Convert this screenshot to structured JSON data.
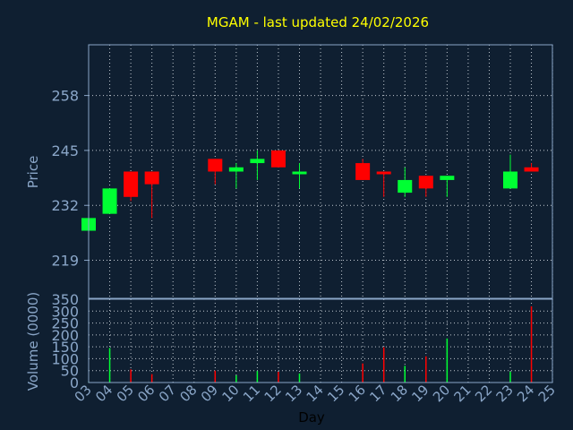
{
  "colors": {
    "background": "#0f1f31",
    "frame": "#8aa6c8",
    "grid": "#c0c8d0",
    "title": "#ffff00",
    "axis_text": "#8aa6c8",
    "xlabel_text": "#000000",
    "up": "#00ff33",
    "down": "#ff0000"
  },
  "chart_data": [
    {
      "type": "candlestick",
      "title": "MGAM - last updated 24/02/2026",
      "ylabel": "Price",
      "xlabel": "Day",
      "grid": true,
      "ylim": [
        210,
        270
      ],
      "yticks": [
        219,
        232,
        245,
        258
      ],
      "x_categories": [
        "03",
        "04",
        "05",
        "06",
        "07",
        "08",
        "09",
        "10",
        "11",
        "12",
        "13",
        "14",
        "15",
        "16",
        "17",
        "18",
        "19",
        "20",
        "21",
        "22",
        "23",
        "24",
        "25"
      ],
      "candles": [
        {
          "x": "03",
          "open": 226,
          "high": 229,
          "low": 226,
          "close": 229,
          "direction": "up"
        },
        {
          "x": "04",
          "open": 230,
          "high": 236,
          "low": 230,
          "close": 236,
          "direction": "up"
        },
        {
          "x": "05",
          "open": 240,
          "high": 240,
          "low": 233,
          "close": 234,
          "direction": "down"
        },
        {
          "x": "06",
          "open": 240,
          "high": 240,
          "low": 229,
          "close": 237,
          "direction": "down"
        },
        {
          "x": "09",
          "open": 243,
          "high": 243,
          "low": 237,
          "close": 240,
          "direction": "down"
        },
        {
          "x": "10",
          "open": 240,
          "high": 242,
          "low": 236,
          "close": 241,
          "direction": "up"
        },
        {
          "x": "11",
          "open": 242,
          "high": 245,
          "low": 238,
          "close": 243,
          "direction": "up"
        },
        {
          "x": "12",
          "open": 245,
          "high": 245,
          "low": 241,
          "close": 241,
          "direction": "down"
        },
        {
          "x": "13",
          "open": 240,
          "high": 242,
          "low": 236,
          "close": 240,
          "direction": "up"
        },
        {
          "x": "16",
          "open": 242,
          "high": 243,
          "low": 238,
          "close": 238,
          "direction": "down"
        },
        {
          "x": "17",
          "open": 240,
          "high": 240,
          "low": 234,
          "close": 240,
          "direction": "down"
        },
        {
          "x": "18",
          "open": 235,
          "high": 241,
          "low": 234,
          "close": 238,
          "direction": "up"
        },
        {
          "x": "19",
          "open": 239,
          "high": 239,
          "low": 234,
          "close": 236,
          "direction": "down"
        },
        {
          "x": "20",
          "open": 238,
          "high": 239,
          "low": 234,
          "close": 239,
          "direction": "up"
        },
        {
          "x": "23",
          "open": 236,
          "high": 244,
          "low": 236,
          "close": 240,
          "direction": "up"
        },
        {
          "x": "24",
          "open": 241,
          "high": 242,
          "low": 240,
          "close": 240,
          "direction": "down"
        }
      ]
    },
    {
      "type": "bar",
      "ylabel": "Volume (0000)",
      "xlabel": "Day",
      "grid": true,
      "ylim": [
        0,
        350
      ],
      "yticks": [
        0,
        50,
        100,
        150,
        200,
        250,
        300,
        350
      ],
      "x_categories": [
        "03",
        "04",
        "05",
        "06",
        "07",
        "08",
        "09",
        "10",
        "11",
        "12",
        "13",
        "14",
        "15",
        "16",
        "17",
        "18",
        "19",
        "20",
        "21",
        "22",
        "23",
        "24",
        "25"
      ],
      "bars": [
        {
          "x": "03",
          "value": 2,
          "direction": "up"
        },
        {
          "x": "04",
          "value": 145,
          "direction": "up"
        },
        {
          "x": "05",
          "value": 55,
          "direction": "down"
        },
        {
          "x": "06",
          "value": 35,
          "direction": "down"
        },
        {
          "x": "09",
          "value": 50,
          "direction": "down"
        },
        {
          "x": "10",
          "value": 30,
          "direction": "up"
        },
        {
          "x": "11",
          "value": 48,
          "direction": "up"
        },
        {
          "x": "12",
          "value": 45,
          "direction": "down"
        },
        {
          "x": "13",
          "value": 38,
          "direction": "up"
        },
        {
          "x": "16",
          "value": 80,
          "direction": "down"
        },
        {
          "x": "17",
          "value": 148,
          "direction": "down"
        },
        {
          "x": "18",
          "value": 70,
          "direction": "up"
        },
        {
          "x": "19",
          "value": 110,
          "direction": "down"
        },
        {
          "x": "20",
          "value": 185,
          "direction": "up"
        },
        {
          "x": "23",
          "value": 45,
          "direction": "up"
        },
        {
          "x": "24",
          "value": 320,
          "direction": "down"
        }
      ]
    }
  ]
}
